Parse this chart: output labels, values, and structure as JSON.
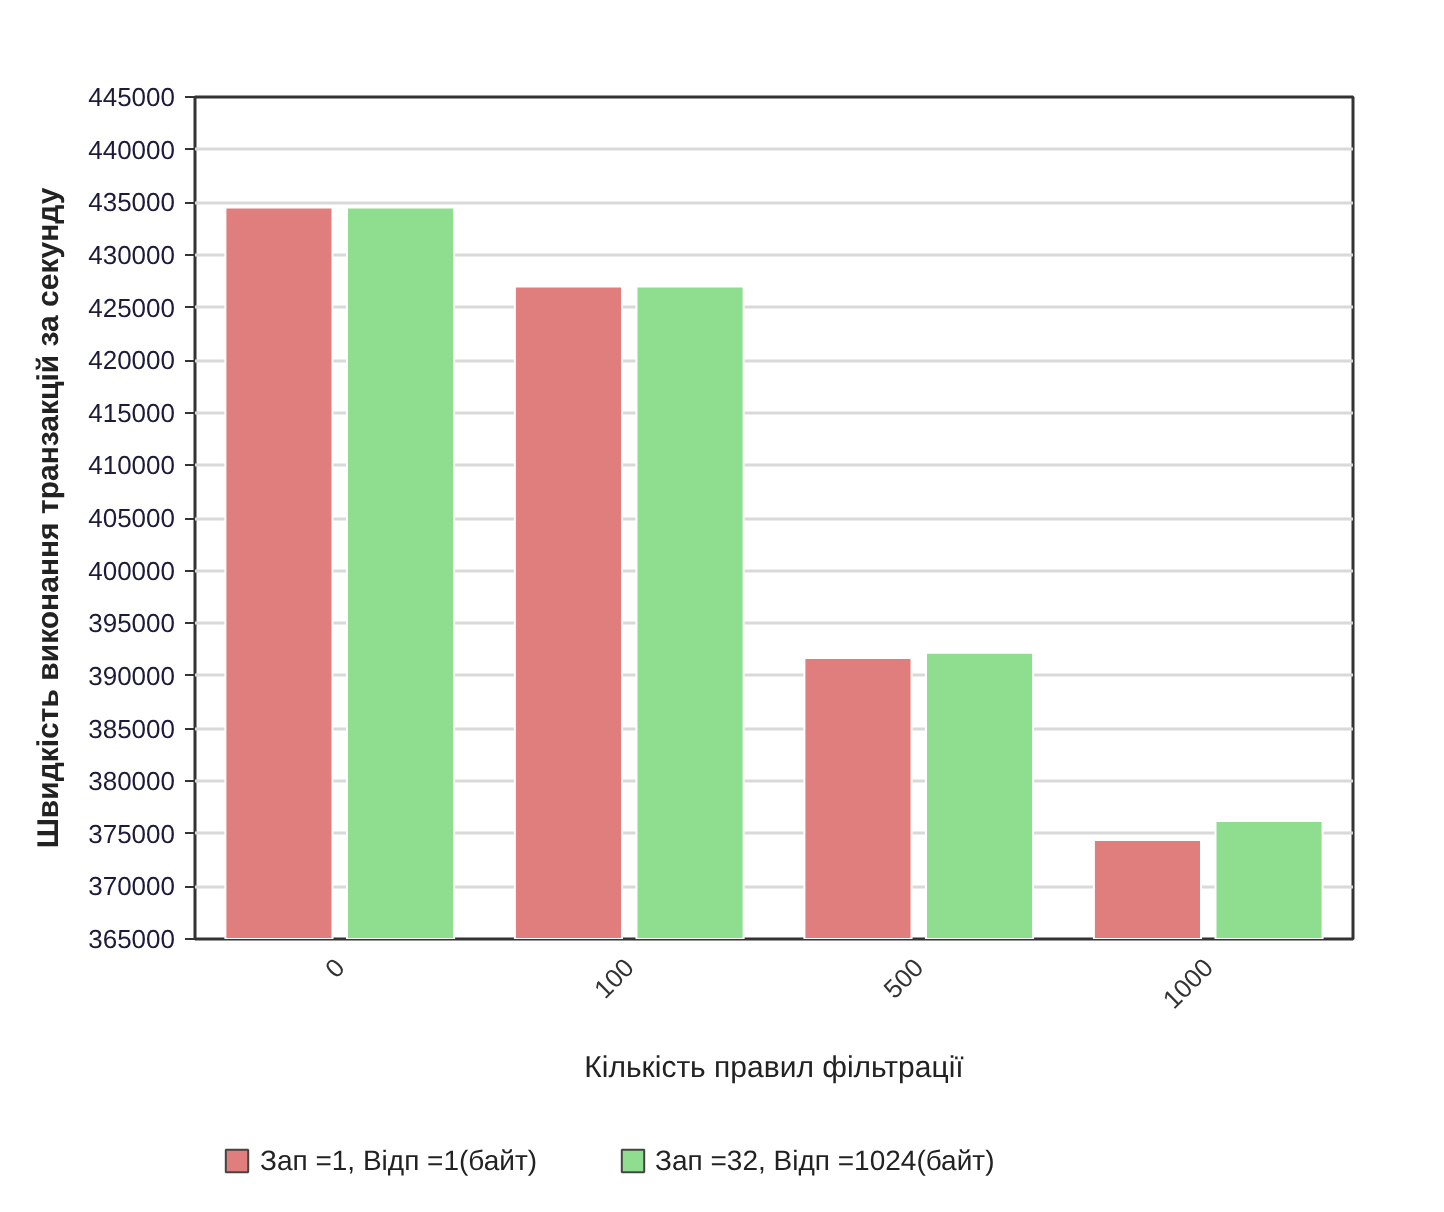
{
  "chart_data": {
    "type": "bar",
    "categories": [
      "0",
      "100",
      "500",
      "1000"
    ],
    "xlabel": "Кількість правил фільтрації",
    "ylabel": "Швидкість виконання транзакцій за секунду",
    "series": [
      {
        "name": "Зап =1, Відп =1(байт)",
        "color": "#e07d7d",
        "values": [
          434500,
          427000,
          391700,
          374400
        ]
      },
      {
        "name": "Зап =32, Відп =1024(байт)",
        "color": "#8fdd8f",
        "values": [
          434500,
          427000,
          392200,
          376200
        ]
      }
    ],
    "ylim": [
      365000,
      445000
    ],
    "yticks": [
      365000,
      370000,
      375000,
      380000,
      385000,
      390000,
      395000,
      400000,
      405000,
      410000,
      415000,
      420000,
      425000,
      430000,
      435000,
      440000,
      445000
    ],
    "grid": "y",
    "legend": "bottom"
  }
}
